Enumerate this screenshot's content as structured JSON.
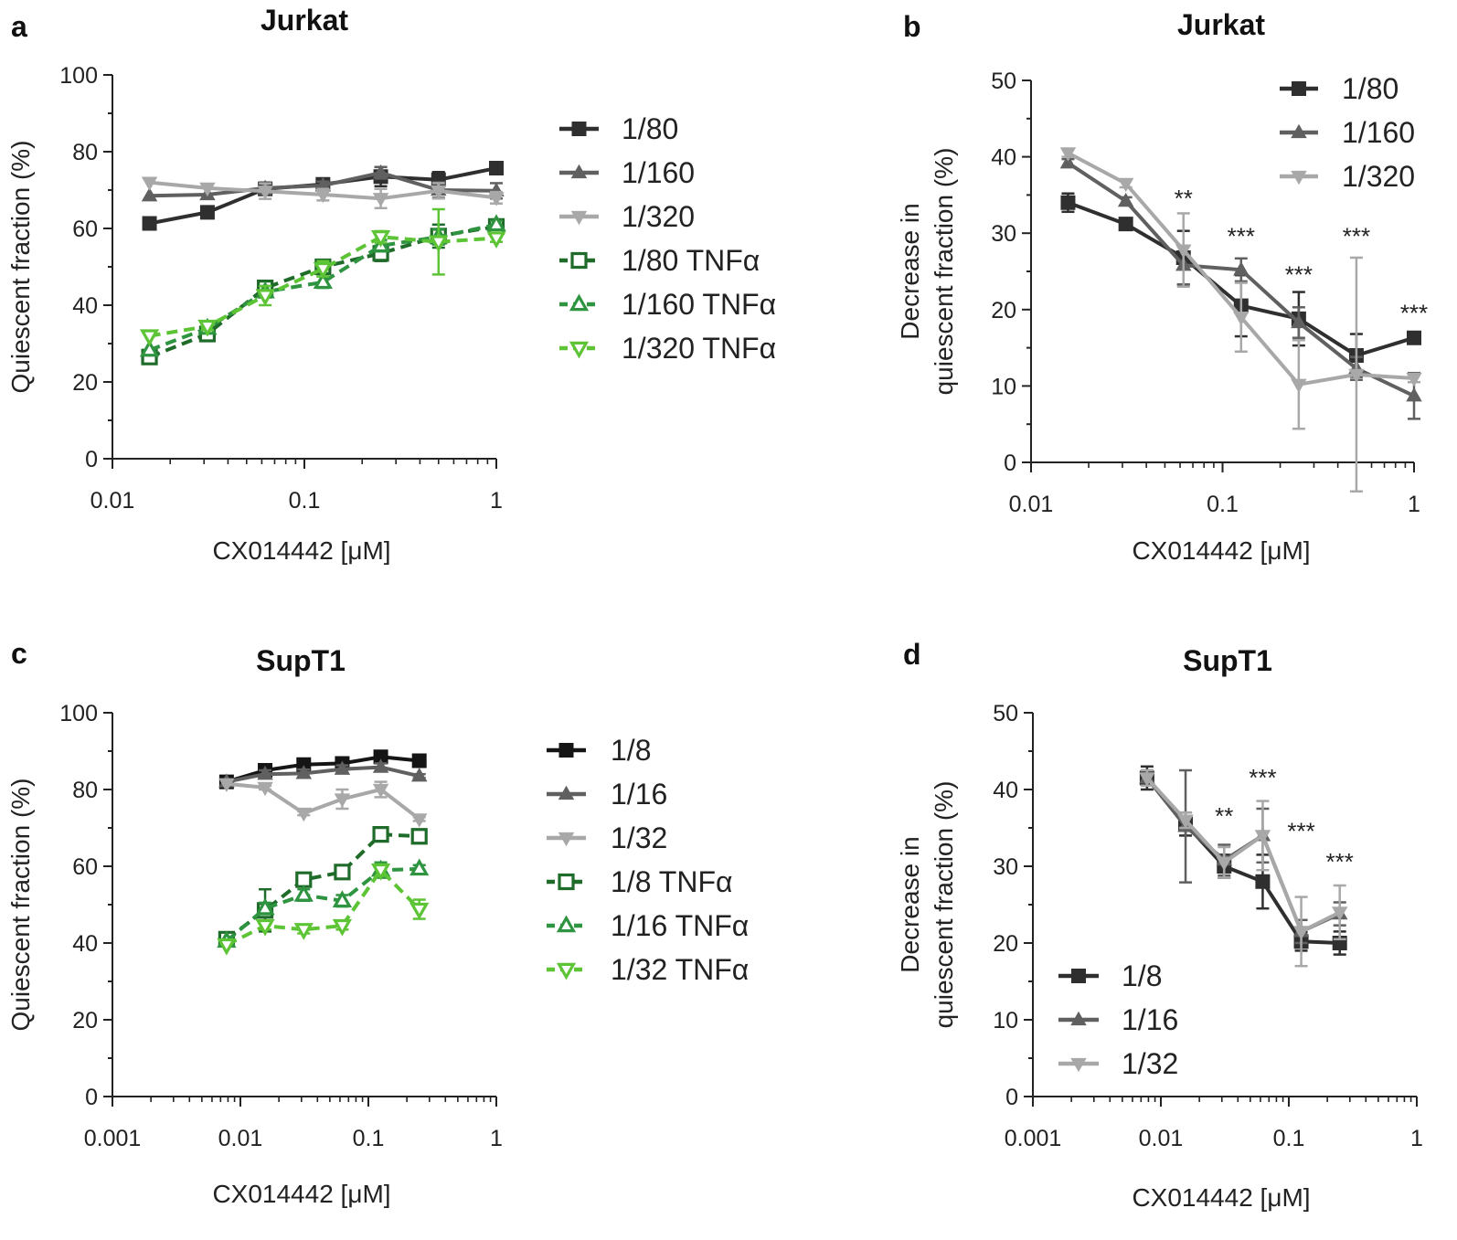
{
  "chart_data": [
    {
      "type": "line",
      "panel_label": "a",
      "title": "Jurkat",
      "xlabel": "CX014442 [μM]",
      "ylabel": "Quiescent fraction (%)",
      "xscale": "log",
      "xlim": [
        0.01,
        1
      ],
      "ylim": [
        0,
        100
      ],
      "x_ticks": [
        0.01,
        0.1,
        1
      ],
      "x_tick_labels": [
        "0.01",
        "0.1",
        "1"
      ],
      "y_ticks": [
        0,
        20,
        40,
        60,
        80,
        100
      ],
      "y_tick_labels": [
        "0",
        "20",
        "40",
        "60",
        "80",
        "100"
      ],
      "legend_position": "right",
      "x": [
        0.0156,
        0.03125,
        0.0625,
        0.125,
        0.25,
        0.5,
        1
      ],
      "series": [
        {
          "name": "1/80",
          "values": [
            61.3,
            64.2,
            70.3,
            71.5,
            73.5,
            72.7,
            75.7
          ],
          "errors": [
            0,
            0,
            1.5,
            1.5,
            2.5,
            2,
            0.5
          ],
          "color": "#2f2f2f",
          "marker": "square",
          "dashed": false,
          "hollow": false
        },
        {
          "name": "1/160",
          "values": [
            68.5,
            68.8,
            70.5,
            71.2,
            74.5,
            70.0,
            69.8
          ],
          "errors": [
            0,
            0,
            1.5,
            1,
            1.5,
            2,
            2
          ],
          "color": "#606060",
          "marker": "triangle-up",
          "dashed": false,
          "hollow": false
        },
        {
          "name": "1/320",
          "values": [
            72.0,
            70.5,
            69.7,
            68.8,
            67.8,
            69.8,
            68.0
          ],
          "errors": [
            0,
            0,
            2,
            1.5,
            2.5,
            2,
            1.5
          ],
          "color": "#a8a8a8",
          "marker": "triangle-down",
          "dashed": false,
          "hollow": false
        },
        {
          "name": "1/80 TNFα",
          "values": [
            26.5,
            32.5,
            44.5,
            50.0,
            53.5,
            58.0,
            60.5
          ],
          "errors": [
            0,
            1,
            1.5,
            1.5,
            2,
            3,
            1.5
          ],
          "color": "#1f6b2a",
          "marker": "square",
          "dashed": true,
          "hollow": true
        },
        {
          "name": "1/160 TNFα",
          "values": [
            28.3,
            34.0,
            43.5,
            46.0,
            55.5,
            57.8,
            61.0
          ],
          "errors": [
            0,
            1,
            1.5,
            1.5,
            1.5,
            2,
            1
          ],
          "color": "#2e9440",
          "marker": "triangle-up",
          "dashed": true,
          "hollow": true
        },
        {
          "name": "1/320 TNFα",
          "values": [
            32.0,
            34.5,
            42.5,
            49.5,
            57.8,
            56.5,
            57.5
          ],
          "errors": [
            0,
            1,
            2.5,
            2,
            1.5,
            8.5,
            1
          ],
          "color": "#5cc435",
          "marker": "triangle-down",
          "dashed": true,
          "hollow": true
        }
      ],
      "annotations": []
    },
    {
      "type": "line",
      "panel_label": "b",
      "title": "Jurkat",
      "xlabel": "CX014442 [μM]",
      "ylabel": "Decrease in quiescent fraction (%)",
      "xscale": "log",
      "xlim": [
        0.01,
        1
      ],
      "ylim": [
        0,
        50
      ],
      "x_ticks": [
        0.01,
        0.1,
        1
      ],
      "x_tick_labels": [
        "0.01",
        "0.1",
        "1"
      ],
      "y_ticks": [
        0,
        10,
        20,
        30,
        40,
        50
      ],
      "y_tick_labels": [
        "0",
        "10",
        "20",
        "30",
        "40",
        "50"
      ],
      "legend_position": "top-right",
      "x": [
        0.0156,
        0.03125,
        0.0625,
        0.125,
        0.25,
        0.5,
        1
      ],
      "series": [
        {
          "name": "1/80",
          "values": [
            34.0,
            31.2,
            26.8,
            20.5,
            18.8,
            14.0,
            16.3
          ],
          "errors": [
            1.2,
            0.5,
            3.5,
            4,
            3.5,
            2.8,
            0.5
          ],
          "color": "#2f2f2f",
          "marker": "square",
          "dashed": false,
          "hollow": false
        },
        {
          "name": "1/160",
          "values": [
            39.2,
            34.2,
            25.8,
            25.2,
            18.3,
            12.3,
            8.7
          ],
          "errors": [
            0.5,
            0.5,
            2.5,
            1.5,
            2,
            1.5,
            3
          ],
          "color": "#606060",
          "marker": "triangle-up",
          "dashed": false,
          "hollow": false
        },
        {
          "name": "1/320",
          "values": [
            40.5,
            36.5,
            27.8,
            19.0,
            10.2,
            11.5,
            11.0
          ],
          "errors": [
            0.5,
            0.5,
            4.8,
            4.5,
            5.8,
            15.3,
            0.5
          ],
          "color": "#a8a8a8",
          "marker": "triangle-down",
          "dashed": false,
          "hollow": false
        }
      ],
      "annotations": [
        {
          "x": 0.0625,
          "y": 33.5,
          "text": "**"
        },
        {
          "x": 0.125,
          "y": 28.5,
          "text": "***"
        },
        {
          "x": 0.25,
          "y": 23.5,
          "text": "***"
        },
        {
          "x": 0.5,
          "y": 28.5,
          "text": "***"
        },
        {
          "x": 1,
          "y": 18.5,
          "text": "***"
        }
      ]
    },
    {
      "type": "line",
      "panel_label": "c",
      "title": "SupT1",
      "xlabel": "CX014442 [μM]",
      "ylabel": "Quiescent fraction (%)",
      "xscale": "log",
      "xlim": [
        0.001,
        1
      ],
      "ylim": [
        0,
        100
      ],
      "x_ticks": [
        0.001,
        0.01,
        0.1,
        1
      ],
      "x_tick_labels": [
        "0.001",
        "0.01",
        "0.1",
        "1"
      ],
      "y_ticks": [
        0,
        20,
        40,
        60,
        80,
        100
      ],
      "y_tick_labels": [
        "0",
        "20",
        "40",
        "60",
        "80",
        "100"
      ],
      "legend_position": "right",
      "x": [
        0.0078,
        0.0156,
        0.03125,
        0.0625,
        0.125,
        0.25
      ],
      "series": [
        {
          "name": "1/8",
          "values": [
            82.0,
            85.0,
            86.5,
            86.8,
            88.5,
            87.5
          ],
          "errors": [
            0,
            0.5,
            0.5,
            0.5,
            0.5,
            0.5
          ],
          "color": "#151515",
          "marker": "square",
          "dashed": false,
          "hollow": false
        },
        {
          "name": "1/16",
          "values": [
            82.0,
            84.0,
            84.2,
            85.3,
            85.8,
            83.5
          ],
          "errors": [
            0,
            1,
            1,
            1,
            1,
            0.5
          ],
          "color": "#606060",
          "marker": "triangle-up",
          "dashed": false,
          "hollow": false
        },
        {
          "name": "1/32",
          "values": [
            81.5,
            80.5,
            73.8,
            77.5,
            80.0,
            72.3
          ],
          "errors": [
            0,
            0.5,
            0.5,
            2.5,
            2,
            0.5
          ],
          "color": "#a8a8a8",
          "marker": "triangle-down",
          "dashed": false,
          "hollow": false
        },
        {
          "name": "1/8 TNFα",
          "values": [
            41.0,
            48.5,
            56.5,
            58.5,
            68.3,
            67.8
          ],
          "errors": [
            0,
            5.5,
            1.5,
            1,
            0.5,
            0.5
          ],
          "color": "#1f6b2a",
          "marker": "square",
          "dashed": true,
          "hollow": true
        },
        {
          "name": "1/16 TNFα",
          "values": [
            40.5,
            49.0,
            52.5,
            51.0,
            59.0,
            59.3
          ],
          "errors": [
            0,
            1.5,
            1.5,
            1.5,
            2,
            1
          ],
          "color": "#2e9440",
          "marker": "triangle-up",
          "dashed": true,
          "hollow": true
        },
        {
          "name": "1/32 TNFα",
          "values": [
            39.5,
            44.5,
            43.5,
            44.5,
            59.0,
            48.8
          ],
          "errors": [
            0,
            1,
            1,
            1,
            1.5,
            2.5
          ],
          "color": "#5cc435",
          "marker": "triangle-down",
          "dashed": true,
          "hollow": true
        }
      ],
      "annotations": []
    },
    {
      "type": "line",
      "panel_label": "d",
      "title": "SupT1",
      "xlabel": "CX014442 [μM]",
      "ylabel": "Decrease in quiescent fraction (%)",
      "xscale": "log",
      "xlim": [
        0.001,
        1
      ],
      "ylim": [
        0,
        50
      ],
      "x_ticks": [
        0.001,
        0.01,
        0.1,
        1
      ],
      "x_tick_labels": [
        "0.001",
        "0.01",
        "0.1",
        "1"
      ],
      "y_ticks": [
        0,
        10,
        20,
        30,
        40,
        50
      ],
      "y_tick_labels": [
        "0",
        "10",
        "20",
        "30",
        "40",
        "50"
      ],
      "legend_position": "bottom-left",
      "x": [
        0.0078,
        0.0156,
        0.03125,
        0.0625,
        0.125,
        0.25
      ],
      "series": [
        {
          "name": "1/8",
          "values": [
            41.5,
            35.5,
            30.0,
            28.0,
            20.2,
            20.0
          ],
          "errors": [
            1.5,
            1.5,
            1.5,
            3.5,
            1.2,
            1.5
          ],
          "color": "#2f2f2f",
          "marker": "square",
          "dashed": false,
          "hollow": false
        },
        {
          "name": "1/16",
          "values": [
            41.5,
            35.2,
            30.8,
            34.0,
            21.5,
            23.8
          ],
          "errors": [
            1,
            7.3,
            2,
            3.5,
            1.5,
            1.5
          ],
          "color": "#606060",
          "marker": "triangle-up",
          "dashed": false,
          "hollow": false
        },
        {
          "name": "1/32",
          "values": [
            41.5,
            36.0,
            30.5,
            34.0,
            21.5,
            24.0
          ],
          "errors": [
            1,
            1,
            2,
            4.5,
            4.5,
            3.5
          ],
          "color": "#a8a8a8",
          "marker": "triangle-down",
          "dashed": false,
          "hollow": false
        }
      ],
      "annotations": [
        {
          "x": 0.03125,
          "y": 35.5,
          "text": "**"
        },
        {
          "x": 0.0625,
          "y": 40.5,
          "text": "***"
        },
        {
          "x": 0.125,
          "y": 33.5,
          "text": "***"
        },
        {
          "x": 0.25,
          "y": 29.5,
          "text": "***"
        }
      ]
    }
  ]
}
